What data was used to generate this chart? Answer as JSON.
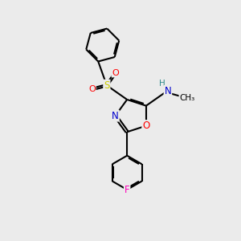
{
  "background_color": "#ebebeb",
  "atom_colors": {
    "C": "#000000",
    "N": "#0000cc",
    "O": "#ff0000",
    "S": "#cccc00",
    "F": "#ff00bb",
    "H": "#2e8b8b"
  },
  "bond_color": "#000000",
  "bond_width": 1.5,
  "dbo": 0.055,
  "figsize": [
    3.0,
    3.0
  ],
  "dpi": 100,
  "xlim": [
    0,
    10
  ],
  "ylim": [
    0,
    10
  ]
}
